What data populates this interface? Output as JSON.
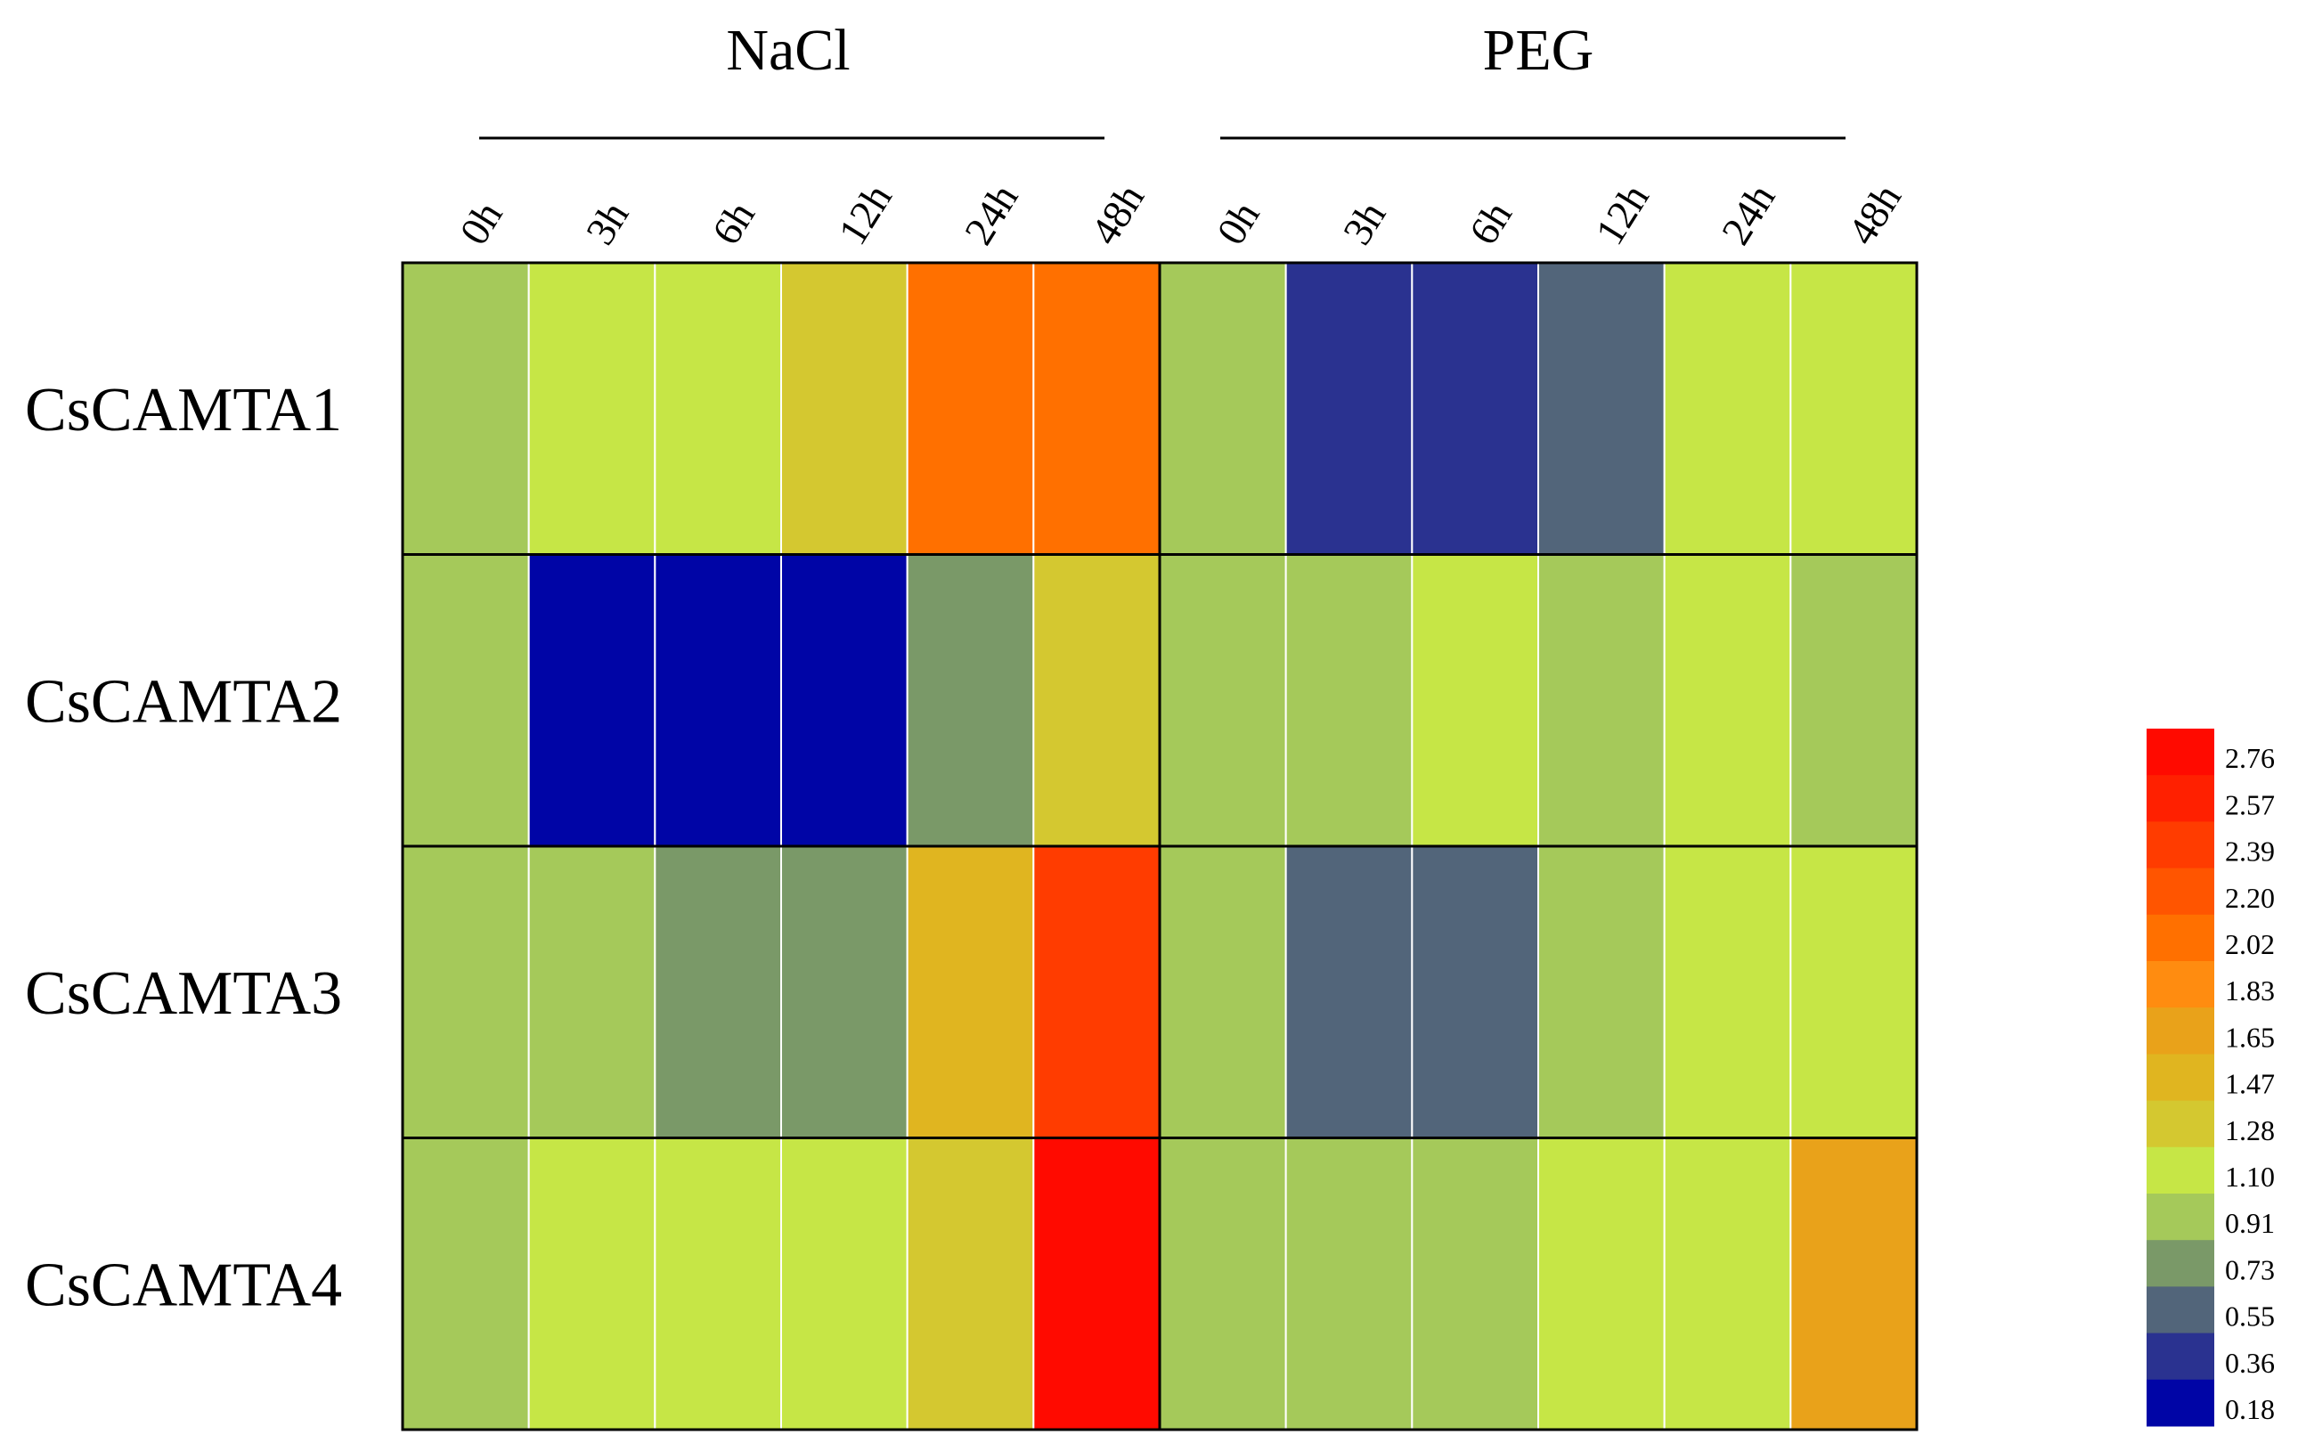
{
  "chart_data": {
    "type": "heatmap",
    "groups": [
      {
        "name": "NaCl",
        "columns": [
          "0h",
          "3h",
          "6h",
          "12h",
          "24h",
          "48h"
        ]
      },
      {
        "name": "PEG",
        "columns": [
          "0h",
          "3h",
          "6h",
          "12h",
          "24h",
          "48h"
        ]
      }
    ],
    "rows": [
      "CsCAMTA1",
      "CsCAMTA2",
      "CsCAMTA3",
      "CsCAMTA4"
    ],
    "values": [
      [
        1.0,
        1.15,
        1.15,
        1.35,
        2.05,
        2.05,
        1.0,
        0.4,
        0.4,
        0.6,
        1.15,
        1.15
      ],
      [
        1.0,
        0.18,
        0.18,
        0.18,
        0.78,
        1.35,
        1.0,
        1.0,
        1.15,
        1.0,
        1.15,
        1.0
      ],
      [
        1.0,
        1.0,
        0.78,
        0.78,
        1.5,
        2.4,
        1.0,
        0.6,
        0.6,
        1.0,
        1.15,
        1.15
      ],
      [
        1.0,
        1.15,
        1.15,
        1.15,
        1.35,
        2.8,
        1.0,
        1.0,
        1.0,
        1.15,
        1.15,
        1.7
      ]
    ],
    "colorbar": {
      "ticks": [
        "2.76",
        "2.57",
        "2.39",
        "2.20",
        "2.02",
        "1.83",
        "1.65",
        "1.47",
        "1.28",
        "1.10",
        "0.91",
        "0.73",
        "0.55",
        "0.36",
        "0.18"
      ],
      "tick_values": [
        2.76,
        2.57,
        2.39,
        2.2,
        2.02,
        1.83,
        1.65,
        1.47,
        1.28,
        1.1,
        0.91,
        0.73,
        0.55,
        0.36,
        0.18
      ],
      "colors": [
        "#ff0a00",
        "#ff2000",
        "#ff3c00",
        "#ff5500",
        "#ff7000",
        "#ff8c10",
        "#e9a21a",
        "#e0b520",
        "#d4c830",
        "#c6e646",
        "#a5c95a",
        "#7a9968",
        "#52657a",
        "#2a3290",
        "#0005a6"
      ]
    },
    "value_range": [
      0.18,
      2.86
    ]
  }
}
